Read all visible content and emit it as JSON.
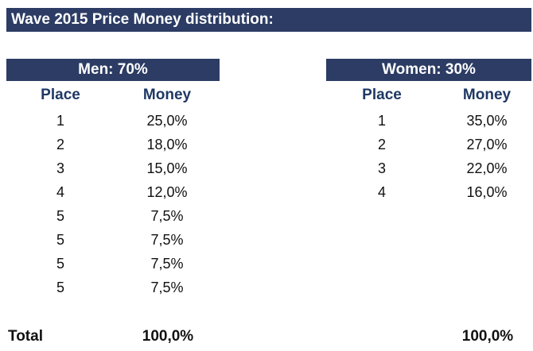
{
  "title": "Wave 2015 Price Money distribution:",
  "men": {
    "header": "Men: 70%",
    "col_place": "Place",
    "col_money": "Money",
    "rows": [
      {
        "place": "1",
        "money": "25,0%"
      },
      {
        "place": "2",
        "money": "18,0%"
      },
      {
        "place": "3",
        "money": "15,0%"
      },
      {
        "place": "4",
        "money": "12,0%"
      },
      {
        "place": "5",
        "money": "7,5%"
      },
      {
        "place": "5",
        "money": "7,5%"
      },
      {
        "place": "5",
        "money": "7,5%"
      },
      {
        "place": "5",
        "money": "7,5%"
      }
    ],
    "total": "100,0%"
  },
  "women": {
    "header": "Women: 30%",
    "col_place": "Place",
    "col_money": "Money",
    "rows": [
      {
        "place": "1",
        "money": "35,0%"
      },
      {
        "place": "2",
        "money": "27,0%"
      },
      {
        "place": "3",
        "money": "22,0%"
      },
      {
        "place": "4",
        "money": "16,0%"
      }
    ],
    "total": "100,0%"
  },
  "total_label": "Total",
  "colors": {
    "header_bg": "#2c3c64",
    "header_text": "#ffffff",
    "column_heading": "#1f3864"
  }
}
